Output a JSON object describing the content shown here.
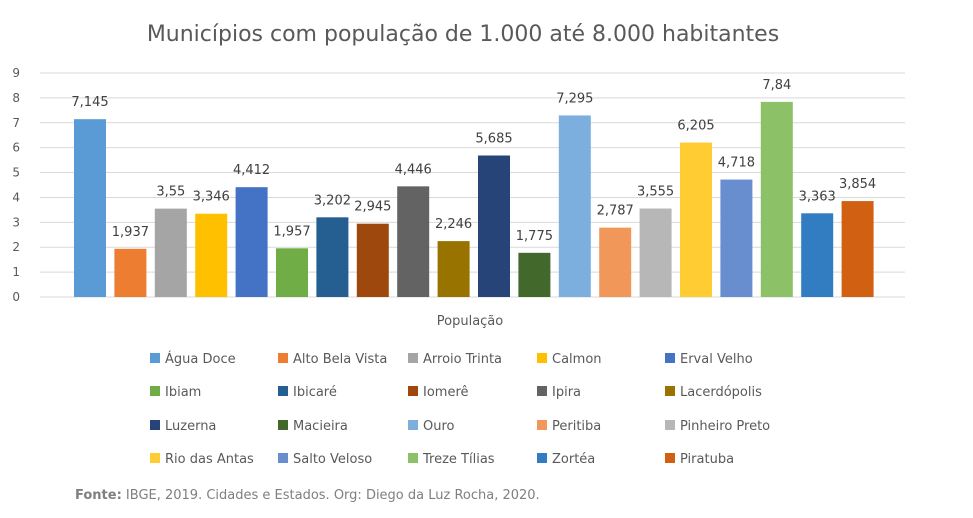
{
  "chart_data": {
    "type": "bar",
    "title": "Municípios com população de 1.000 até 8.000 habitantes",
    "xlabel": "População",
    "ylabel": "",
    "ylim": [
      0,
      9
    ],
    "yticks": [
      "0",
      "1",
      "2",
      "3",
      "4",
      "5",
      "6",
      "7",
      "8",
      "9"
    ],
    "grid": true,
    "legend_position": "bottom",
    "categories": [
      "População"
    ],
    "series": [
      {
        "name": "Água Doce",
        "value": 7.145,
        "label": "7,145",
        "color": "#5B9BD5"
      },
      {
        "name": "Alto Bela Vista",
        "value": 1.937,
        "label": "1,937",
        "color": "#ED7D31"
      },
      {
        "name": "Arroio Trinta",
        "value": 3.55,
        "label": "3,55",
        "color": "#A5A5A5"
      },
      {
        "name": "Calmon",
        "value": 3.346,
        "label": "3,346",
        "color": "#FFC000"
      },
      {
        "name": "Erval Velho",
        "value": 4.412,
        "label": "4,412",
        "color": "#4472C4"
      },
      {
        "name": "Ibiam",
        "value": 1.957,
        "label": "1,957",
        "color": "#70AD47"
      },
      {
        "name": "Ibicaré",
        "value": 3.202,
        "label": "3,202",
        "color": "#255E91"
      },
      {
        "name": "Iomerê",
        "value": 2.945,
        "label": "2,945",
        "color": "#9E480E"
      },
      {
        "name": "Ipira",
        "value": 4.446,
        "label": "4,446",
        "color": "#636363"
      },
      {
        "name": "Lacerdópolis",
        "value": 2.246,
        "label": "2,246",
        "color": "#997300"
      },
      {
        "name": "Luzerna",
        "value": 5.685,
        "label": "5,685",
        "color": "#264478"
      },
      {
        "name": "Macieira",
        "value": 1.775,
        "label": "1,775",
        "color": "#43682B"
      },
      {
        "name": "Ouro",
        "value": 7.295,
        "label": "7,295",
        "color": "#7CAFDD"
      },
      {
        "name": "Peritiba",
        "value": 2.787,
        "label": "2,787",
        "color": "#F1975A"
      },
      {
        "name": "Pinheiro Preto",
        "value": 3.555,
        "label": "3,555",
        "color": "#B7B7B7"
      },
      {
        "name": "Rio das Antas",
        "value": 6.205,
        "label": "6,205",
        "color": "#FFCD33"
      },
      {
        "name": "Salto Veloso",
        "value": 4.718,
        "label": "4,718",
        "color": "#698ED0"
      },
      {
        "name": "Treze Tílias",
        "value": 7.84,
        "label": "7,84",
        "color": "#8CC168"
      },
      {
        "name": "Zortéa",
        "value": 3.363,
        "label": "3,363",
        "color": "#327DC2"
      },
      {
        "name": "Piratuba",
        "value": 3.854,
        "label": "3,854",
        "color": "#D26012"
      }
    ]
  },
  "source": {
    "label": "Fonte:",
    "text": " IBGE, 2019. Cidades e Estados. Org: Diego da Luz Rocha, 2020."
  }
}
